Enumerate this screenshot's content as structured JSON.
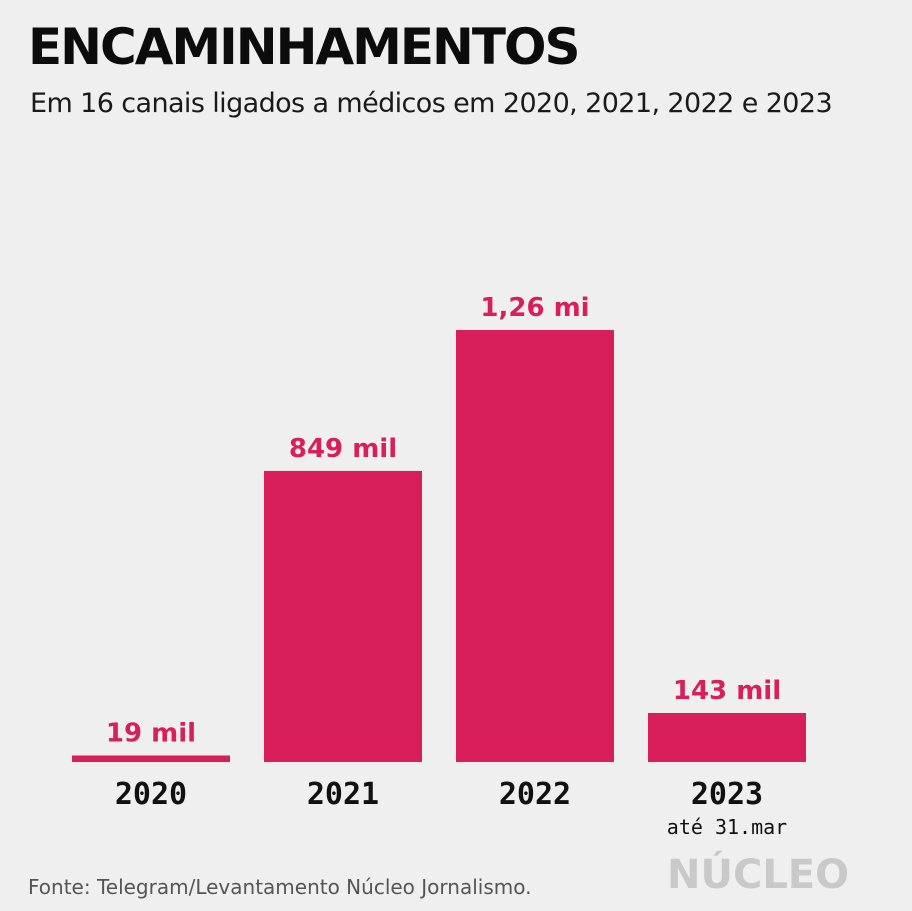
{
  "header": {
    "title": "ENCAMINHAMENTOS",
    "subtitle": "Em 16 canais ligados a médicos em 2020, 2021, 2022 e 2023"
  },
  "footer": {
    "source": "Fonte: Telegram/Levantamento Núcleo Jornalismo.",
    "logo_text": "NÚCLEO"
  },
  "colors": {
    "bar": "#d81f5b",
    "label": "#d81f5b",
    "axis_text": "#111111",
    "background": "#efefef"
  },
  "chart_data": {
    "type": "bar",
    "title": "ENCAMINHAMENTOS",
    "subtitle": "Em 16 canais ligados a médicos em 2020, 2021, 2022 e 2023",
    "categories": [
      "2020",
      "2021",
      "2022",
      "2023"
    ],
    "category_notes": [
      "",
      "",
      "",
      "até 31.mar"
    ],
    "values": [
      19000,
      849000,
      1260000,
      143000
    ],
    "value_labels": [
      "19 mil",
      "849 mil",
      "1,26 mi",
      "143 mil"
    ],
    "xlabel": "",
    "ylabel": "",
    "ylim": [
      0,
      1260000
    ],
    "grid": false,
    "legend": "none"
  }
}
